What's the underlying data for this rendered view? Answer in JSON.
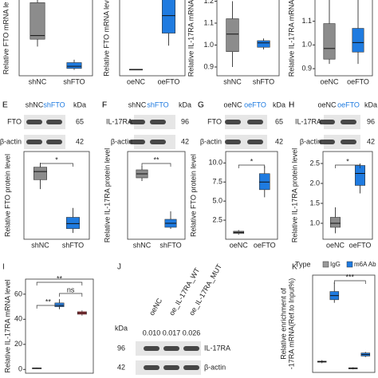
{
  "chart_data": [
    {
      "type": "box",
      "ylabel": "Relative FTO mRNA le",
      "categories": [
        "shNC",
        "shFTO"
      ],
      "ylim": [
        0.2,
        1.4
      ],
      "series": [
        {
          "color": "#8c8c8c",
          "values": [
            [
              0.6,
              0.7,
              0.75,
              1.2,
              1.35
            ],
            null
          ]
        },
        {
          "color": "#1f7be0",
          "values": [
            null,
            [
              0.28,
              0.3,
              0.33,
              0.38,
              0.42
            ]
          ]
        }
      ]
    },
    {
      "type": "box",
      "ylabel": "Relative FTO mRNA lev",
      "categories": [
        "oeNC",
        "oeFTO"
      ],
      "ylim": [
        -0.2,
        3.3
      ],
      "series": [
        {
          "color": "#8c8c8c",
          "values": [
            [
              0.03,
              0.04,
              0.05,
              0.06,
              0.07
            ],
            null
          ]
        },
        {
          "color": "#1f7be0",
          "values": [
            null,
            [
              1.0,
              1.5,
              2.2,
              2.9,
              3.2
            ]
          ]
        }
      ]
    },
    {
      "type": "box",
      "ylabel": "Relative IL-17RA mRNA",
      "categories": [
        "shNC",
        "shFTO"
      ],
      "ylim": [
        0.86,
        1.26
      ],
      "yticks": [
        0.9,
        {
          "value": 1,
          "label": "1.0"
        },
        1.1,
        1.2
      ],
      "series": [
        {
          "color": "#8c8c8c",
          "values": [
            [
              0.9,
              0.97,
              1.05,
              1.12,
              1.2
            ],
            null
          ]
        },
        {
          "color": "#1f7be0",
          "values": [
            null,
            [
              0.98,
              0.99,
              1.01,
              1.02,
              1.03
            ]
          ]
        }
      ]
    },
    {
      "type": "box",
      "ylabel": "Relative IL-17RA mRNA",
      "categories": [
        "oeNC",
        "oeFTO"
      ],
      "ylim": [
        0.87,
        1.24
      ],
      "yticks": [
        0.9,
        {
          "value": 1,
          "label": "1.0"
        },
        1.1,
        1.2
      ],
      "series": [
        {
          "color": "#8c8c8c",
          "values": [
            [
              0.92,
              0.94,
              0.985,
              1.09,
              1.2
            ],
            null
          ]
        },
        {
          "color": "#1f7be0",
          "values": [
            null,
            [
              0.92,
              0.97,
              1.01,
              1.07,
              1.2
            ]
          ]
        }
      ]
    },
    {
      "type": "box",
      "panel": "E",
      "ylabel": "Relative FTO protein level",
      "categories": [
        "shNC",
        "shFTO"
      ],
      "ylim": [
        -0.05,
        1.35
      ],
      "annotations": [
        "*"
      ],
      "series": [
        {
          "color": "#8c8c8c",
          "values": [
            [
              0.75,
              0.9,
              1.03,
              1.1,
              1.17
            ],
            null
          ]
        },
        {
          "color": "#1f7be0",
          "values": [
            null,
            [
              0.05,
              0.12,
              0.2,
              0.3,
              0.45
            ]
          ]
        }
      ]
    },
    {
      "type": "box",
      "panel": "F",
      "ylabel": "Relative IL-17RA protein level",
      "categories": [
        "shNC",
        "shFTO"
      ],
      "ylim": [
        0.15,
        1.25
      ],
      "annotations": [
        "**"
      ],
      "series": [
        {
          "color": "#8c8c8c",
          "values": [
            [
              0.88,
              0.92,
              0.97,
              1.02,
              1.07
            ],
            null
          ]
        },
        {
          "color": "#1f7be0",
          "values": [
            null,
            [
              0.28,
              0.3,
              0.35,
              0.4,
              0.5
            ]
          ]
        }
      ]
    },
    {
      "type": "box",
      "panel": "G",
      "ylabel": "Relative FTO protein level",
      "categories": [
        "oeNC",
        "oeFTO"
      ],
      "ylim": [
        0,
        11.5
      ],
      "annotations": [
        "*"
      ],
      "yticks": [
        2.5,
        {
          "value": 5,
          "label": "5.0"
        },
        7.5,
        {
          "value": 10,
          "label": "10.0"
        }
      ],
      "series": [
        {
          "color": "#8c8c8c",
          "values": [
            [
              0.6,
              0.75,
              0.9,
              1.05,
              1.2
            ],
            null
          ]
        },
        {
          "color": "#1f7be0",
          "values": [
            null,
            [
              5.5,
              6.5,
              7.5,
              8.6,
              9.6
            ]
          ]
        }
      ]
    },
    {
      "type": "box",
      "panel": "H",
      "ylabel": "Relative IL-17RA protein level",
      "categories": [
        "oeNC",
        "oeFTO"
      ],
      "ylim": [
        0.6,
        2.8
      ],
      "annotations": [
        "*"
      ],
      "yticks": [
        {
          "value": 1,
          "label": "1.0"
        },
        1.5,
        {
          "value": 2,
          "label": "2.0"
        },
        2.5
      ],
      "series": [
        {
          "color": "#8c8c8c",
          "values": [
            [
              0.75,
              0.9,
              1.0,
              1.15,
              1.4
            ],
            null
          ]
        },
        {
          "color": "#1f7be0",
          "values": [
            null,
            [
              1.75,
              1.95,
              2.25,
              2.45,
              2.5
            ]
          ]
        }
      ]
    },
    {
      "type": "box",
      "panel": "I",
      "ylabel": "Relative IL-17RA mRNA level",
      "categories": [
        null,
        null,
        null
      ],
      "ylim": [
        -3,
        72
      ],
      "annotations": [
        "**",
        "**",
        "ns"
      ],
      "yticks": [
        0,
        20,
        40,
        60
      ],
      "series": [
        {
          "color": "#222222",
          "values": [
            [
              0.5,
              0.8,
              1,
              1.2,
              1.5
            ],
            null,
            null
          ]
        },
        {
          "color": "#2a7fe0",
          "values": [
            null,
            [
              48,
              50,
              51,
              53,
              56
            ],
            null
          ]
        },
        {
          "color": "#d6404a",
          "values": [
            null,
            null,
            [
              43,
              44,
              45,
              46,
              47
            ]
          ]
        }
      ]
    },
    {
      "type": "box",
      "panel": "K",
      "ylabel": [
        "Relative enrichment of",
        "-17RA mRNA(Ref.to Input%)"
      ],
      "categories": [
        null,
        null
      ],
      "ylim": [
        0,
        9.5
      ],
      "annotations": [
        "***"
      ],
      "legend_title": "Type",
      "series": [
        {
          "name": "IgG",
          "color": "#9a9a9a",
          "values": [
            [
              0.9,
              1.0,
              1.05,
              1.1,
              1.2
            ],
            [
              0.3,
              0.35,
              0.4,
              0.45,
              0.5
            ]
          ]
        },
        {
          "name": "m6A Ab",
          "color": "#1f7be0",
          "values": [
            [
              6.8,
              7.1,
              7.5,
              7.9,
              8.8
            ],
            [
              1.5,
              1.6,
              1.75,
              1.9,
              2.0
            ]
          ]
        }
      ]
    }
  ],
  "blots": [
    {
      "panel": "E",
      "lanes": [
        "shNC",
        "shFTO"
      ],
      "kda_label": "kDa",
      "rows": [
        {
          "name": "FTO",
          "kda": 65
        },
        {
          "name": "β-actin",
          "kda": 42
        }
      ]
    },
    {
      "panel": "F",
      "lanes": [
        "shNC",
        "shFTO"
      ],
      "kda_label": "kDa",
      "rows": [
        {
          "name": "IL-17RA",
          "kda": 96
        },
        {
          "name": "β-actin",
          "kda": 42
        }
      ]
    },
    {
      "panel": "G",
      "lanes": [
        "oeNC",
        "oeFTO"
      ],
      "kda_label": "kDa",
      "rows": [
        {
          "name": "FTO",
          "kda": 65
        },
        {
          "name": "β-actin",
          "kda": 42
        }
      ]
    },
    {
      "panel": "H",
      "lanes": [
        "oeNC",
        "oeFTO"
      ],
      "kda_label": "kDa",
      "rows": [
        {
          "name": "IL-17RA",
          "kda": 96
        },
        {
          "name": "β-actin",
          "kda": 42
        }
      ]
    },
    {
      "panel": "J",
      "lanes": [
        "oeNC",
        "oe_IL-17RA_WT",
        "oe_IL-17RA_MUT"
      ],
      "densities": [
        "0.010",
        "0.017",
        "0.026"
      ],
      "kda_label": "kDa",
      "rows": [
        {
          "name": "IL-17RA",
          "kda": 96
        },
        {
          "name": "β-actin",
          "kda": 42
        }
      ]
    }
  ]
}
